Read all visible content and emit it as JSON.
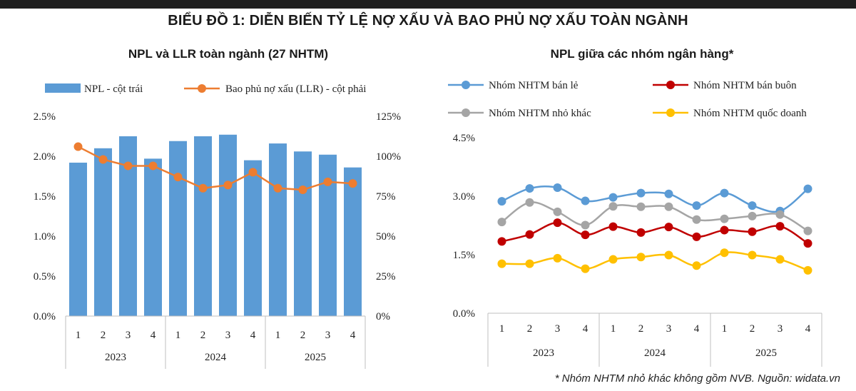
{
  "title": "BIỂU ĐỒ 1: DIỄN BIẾN TỶ LỆ NỢ XẤU VÀ BAO PHỦ NỢ XẤU TOÀN NGÀNH",
  "footnote": "* Nhóm NHTM nhỏ khác không gồm NVB. Nguồn: widata.vn",
  "colors": {
    "bar": "#5b9bd5",
    "llr": "#ed7d31",
    "ban_le": "#5b9bd5",
    "ban_buon": "#c00000",
    "nho_khac": "#a5a5a5",
    "quoc_doanh": "#ffc000",
    "axis": "#bfbfbf"
  },
  "chart_data": [
    {
      "type": "bar+line",
      "title": "NPL và LLR toàn ngành (27 NHTM)",
      "categories": [
        "1",
        "2",
        "3",
        "4",
        "1",
        "2",
        "3",
        "4",
        "1",
        "2",
        "3",
        "4"
      ],
      "groups": [
        "2023",
        "2024",
        "2025"
      ],
      "y_left": {
        "min": 0,
        "max": 2.5,
        "ticks": [
          "0.0%",
          "0.5%",
          "1.0%",
          "1.5%",
          "2.0%",
          "2.5%"
        ]
      },
      "y_right": {
        "min": 0,
        "max": 125,
        "ticks": [
          "0%",
          "25%",
          "50%",
          "75%",
          "100%",
          "125%"
        ]
      },
      "series": [
        {
          "name": "NPL - cột trái",
          "type": "bar",
          "axis": "left",
          "values": [
            1.92,
            2.1,
            2.25,
            1.97,
            2.19,
            2.25,
            2.27,
            1.95,
            2.16,
            2.06,
            2.02,
            1.86
          ]
        },
        {
          "name": "Bao phủ nợ xấu (LLR) - cột phải",
          "type": "line",
          "axis": "right",
          "values": [
            106,
            98,
            94,
            94,
            87,
            80,
            82,
            90,
            80,
            79,
            84,
            83
          ]
        }
      ]
    },
    {
      "type": "line",
      "title": "NPL giữa các nhóm ngân hàng*",
      "categories": [
        "1",
        "2",
        "3",
        "4",
        "1",
        "2",
        "3",
        "4",
        "1",
        "2",
        "3",
        "4"
      ],
      "groups": [
        "2023",
        "2024",
        "2025"
      ],
      "y": {
        "min": 0,
        "max": 4.5,
        "ticks": [
          "0.0%",
          "1.5%",
          "3.0%",
          "4.5%"
        ]
      },
      "series": [
        {
          "name": "Nhóm NHTM bán lẻ",
          "key": "ban_le",
          "values": [
            2.87,
            3.2,
            3.22,
            2.88,
            2.97,
            3.08,
            3.06,
            2.76,
            3.08,
            2.76,
            2.62,
            3.19
          ]
        },
        {
          "name": "Nhóm NHTM bán buôn",
          "key": "ban_buon",
          "values": [
            1.84,
            2.02,
            2.32,
            2.01,
            2.22,
            2.07,
            2.21,
            1.96,
            2.13,
            2.09,
            2.23,
            1.79
          ]
        },
        {
          "name": "Nhóm NHTM nhỏ khác",
          "key": "nho_khac",
          "values": [
            2.34,
            2.84,
            2.6,
            2.26,
            2.74,
            2.73,
            2.73,
            2.4,
            2.42,
            2.49,
            2.53,
            2.11
          ]
        },
        {
          "name": "Nhóm NHTM quốc doanh",
          "key": "quoc_doanh",
          "values": [
            1.27,
            1.27,
            1.41,
            1.14,
            1.38,
            1.44,
            1.49,
            1.22,
            1.55,
            1.49,
            1.38,
            1.1
          ]
        }
      ]
    }
  ]
}
